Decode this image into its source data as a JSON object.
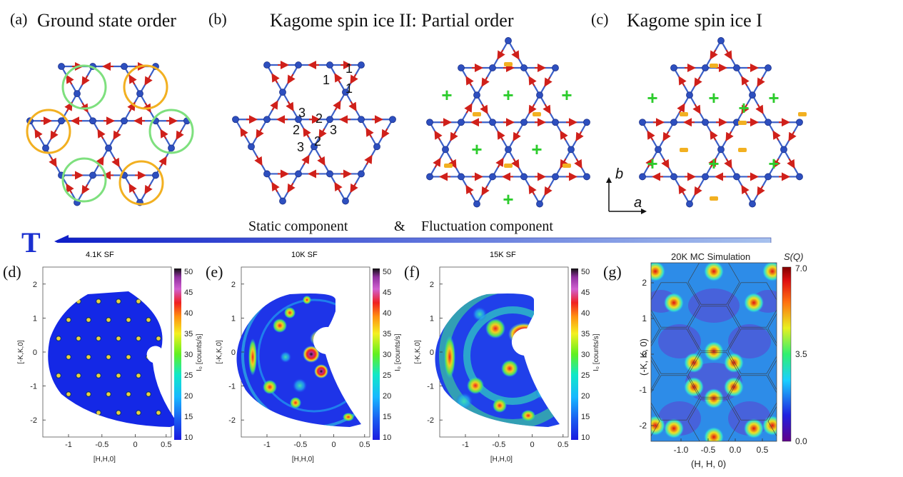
{
  "top": {
    "a_label": "(a)",
    "a_title": "Ground state order",
    "b_label": "(b)",
    "b_title": "Kagome spin ice II: Partial order",
    "c_label": "(c)",
    "c_title": "Kagome spin ice I",
    "b_numbers": [
      "1",
      "1",
      "1",
      "3",
      "2",
      "2",
      "3",
      "2",
      "3"
    ],
    "static_label": "Static component",
    "amp": "&",
    "fluct_label": "Fluctuation component",
    "axis_b": "b",
    "axis_a": "a",
    "temp_symbol": "T",
    "plus": "+",
    "colors": {
      "bond": "#3a5fc8",
      "node": "#2d4fbf",
      "spin": "#d0201a",
      "loop_green": "#7ee07e",
      "loop_orange": "#f2b021",
      "minus": "#f2b021",
      "plus": "#2dcc2d",
      "arrow": "#2a3fd0"
    }
  },
  "bottom": {
    "panels": [
      {
        "label": "(d)",
        "title": "4.1K SF"
      },
      {
        "label": "(e)",
        "title": "10K SF"
      },
      {
        "label": "(f)",
        "title": "15K SF"
      },
      {
        "label": "(g)",
        "title": "20K MC Simulation"
      }
    ],
    "xlabel": "[H,H,0]",
    "ylabel": "[-K,K,0]",
    "xticks": [
      "-1",
      "-0.5",
      "0",
      "0.5"
    ],
    "yticks": [
      "2",
      "1",
      "0",
      "-1",
      "-2"
    ],
    "cbar_label": "I₀ [counts/s]",
    "cbar_ticks": [
      "50",
      "45",
      "40",
      "35",
      "30",
      "25",
      "20",
      "15",
      "10"
    ],
    "g_xlabel": "(H, H, 0)",
    "g_ylabel": "(-K, K, 0)",
    "g_xticks": [
      "-1.0",
      "-0.5",
      "0.0",
      "0.5"
    ],
    "g_yticks": [
      "2",
      "1",
      "0",
      "-1",
      "-2"
    ],
    "g_cbar_label": "S(Q)",
    "g_cbar_ticks": [
      "7.0",
      "3.5",
      "0.0"
    ]
  }
}
